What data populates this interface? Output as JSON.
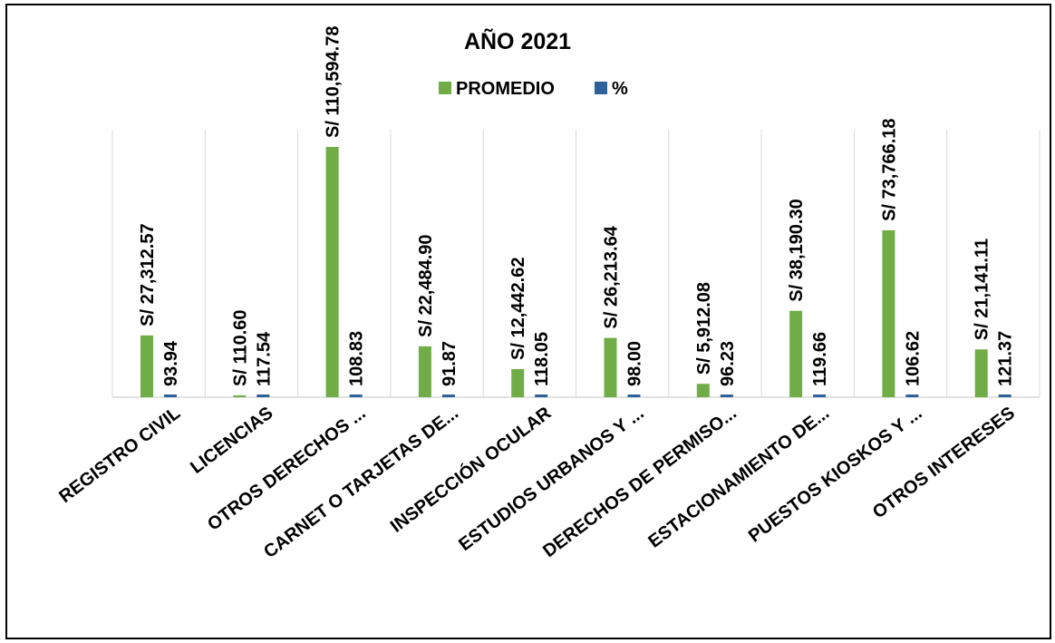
{
  "chart_data": {
    "type": "bar",
    "title": "AÑO 2021",
    "categories": [
      "REGISTRO CIVIL",
      "LICENCIAS",
      "OTROS DERECHOS ...",
      "CARNET O TARJETAS DE...",
      "INSPECCIÓN OCULAR",
      "ESTUDIOS URBANOS Y ...",
      "DERECHOS DE PERMISO...",
      "ESTACIONAMIENTO DE...",
      "PUESTOS KIOSKOS Y ...",
      "OTROS INTERESES"
    ],
    "series": [
      {
        "name": "PROMEDIO",
        "color": "#70ad47",
        "values": [
          27312.57,
          110.6,
          110594.78,
          22484.9,
          12442.62,
          26213.64,
          5912.08,
          38190.3,
          73766.18,
          21141.11
        ],
        "labels": [
          "S/ 27,312.57",
          "S/ 110.60",
          "S/ 110,594.78",
          "S/ 22,484.90",
          "S/ 12,442.62",
          "S/ 26,213.64",
          "S/ 5,912.08",
          "S/ 38,190.30",
          "S/ 73,766.18",
          "S/ 21,141.11"
        ]
      },
      {
        "name": "%",
        "color": "#2e6099",
        "values": [
          93.94,
          117.54,
          108.83,
          91.87,
          118.05,
          98.0,
          96.23,
          119.66,
          106.62,
          121.37
        ],
        "labels": [
          "93.94",
          "117.54",
          "108.83",
          "91.87",
          "118.05",
          "98.00",
          "96.23",
          "119.66",
          "106.62",
          "121.37"
        ]
      }
    ],
    "ylim": [
      0,
      110594.78
    ],
    "grid": "vertical",
    "legend": "top-center",
    "xlabel": "",
    "ylabel": ""
  }
}
